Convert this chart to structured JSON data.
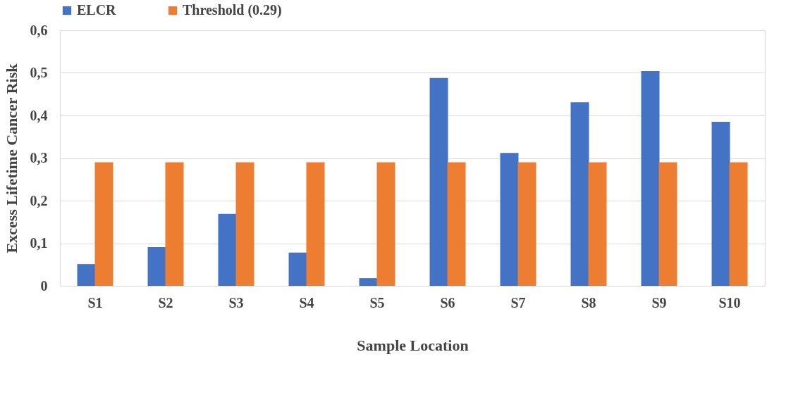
{
  "chart_data": {
    "type": "bar",
    "xlabel": "Sample Location",
    "ylabel": "Excess Lifetime Cancer Risk",
    "categories": [
      "S1",
      "S2",
      "S3",
      "S4",
      "S5",
      "S6",
      "S7",
      "S8",
      "S9",
      "S10"
    ],
    "series": [
      {
        "name": "ELCR",
        "color": "#4472c4",
        "values": [
          0.051,
          0.091,
          0.169,
          0.078,
          0.018,
          0.488,
          0.312,
          0.431,
          0.504,
          0.385
        ]
      },
      {
        "name": "Threshold (0.29)",
        "color": "#ed7d31",
        "values": [
          0.29,
          0.29,
          0.29,
          0.29,
          0.29,
          0.29,
          0.29,
          0.29,
          0.29,
          0.29
        ]
      }
    ],
    "ylim": [
      0,
      0.6
    ],
    "yticks": [
      {
        "value": 0,
        "label": "0"
      },
      {
        "value": 0.1,
        "label": "0,1"
      },
      {
        "value": 0.2,
        "label": "0,2"
      },
      {
        "value": 0.3,
        "label": "0,3"
      },
      {
        "value": 0.4,
        "label": "0,4"
      },
      {
        "value": 0.5,
        "label": "0,5"
      },
      {
        "value": 0.6,
        "label": "0,6"
      }
    ],
    "grid": "y",
    "legend": "top"
  }
}
